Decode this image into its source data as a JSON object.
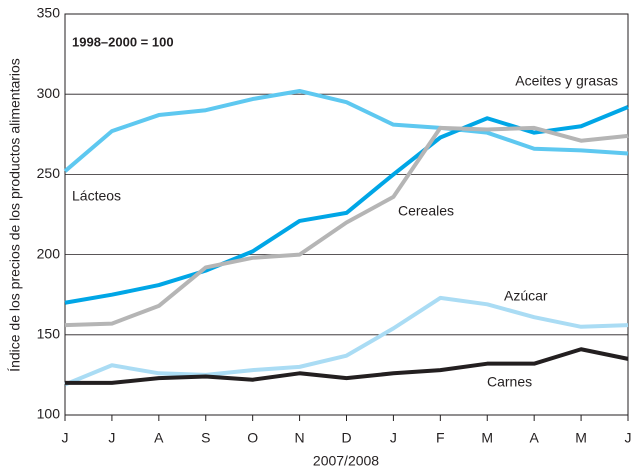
{
  "chart_data": {
    "type": "line",
    "annotation": "1998–2000 = 100",
    "x_label": "2007/2008",
    "y_label": "Índice de los precios de los productos alimentarios",
    "categories": [
      "J",
      "J",
      "A",
      "S",
      "O",
      "N",
      "D",
      "J",
      "F",
      "M",
      "A",
      "M",
      "J"
    ],
    "series": [
      {
        "name": "Lácteos",
        "color": "#5ec8f0",
        "values": [
          252,
          277,
          287,
          290,
          297,
          302,
          295,
          281,
          279,
          276,
          266,
          265,
          263
        ]
      },
      {
        "name": "Aceites y grasas",
        "color": "#00a6e6",
        "values": [
          170,
          175,
          181,
          190,
          202,
          221,
          226,
          250,
          273,
          285,
          276,
          280,
          292
        ]
      },
      {
        "name": "Cereales",
        "color": "#b5b5b5",
        "values": [
          156,
          157,
          168,
          192,
          198,
          200,
          220,
          236,
          279,
          278,
          279,
          271,
          274
        ]
      },
      {
        "name": "Azúcar",
        "color": "#aadcf4",
        "values": [
          119,
          131,
          126,
          125,
          128,
          130,
          137,
          154,
          173,
          169,
          161,
          155,
          156
        ]
      },
      {
        "name": "Carnes",
        "color": "#231f20",
        "values": [
          120,
          120,
          123,
          124,
          122,
          126,
          123,
          126,
          128,
          132,
          132,
          141,
          135
        ]
      }
    ],
    "ylim": [
      100,
      350
    ],
    "yticks": [
      100,
      150,
      200,
      250,
      300,
      350
    ],
    "grid": true
  }
}
